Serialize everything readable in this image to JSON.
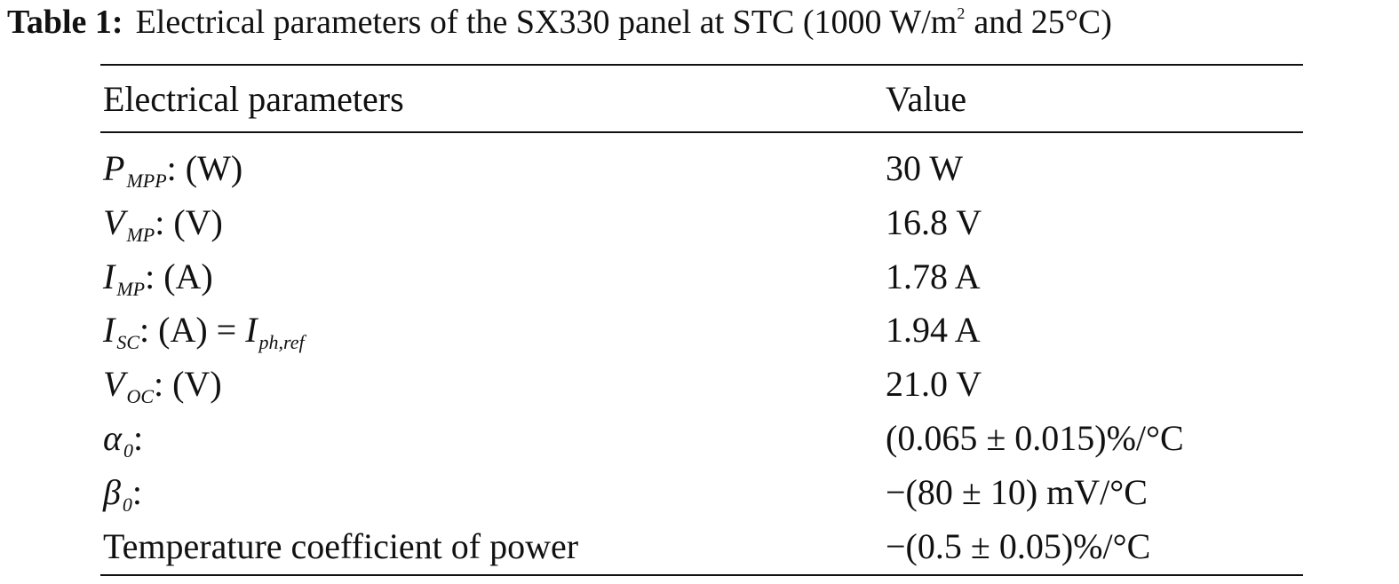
{
  "caption": {
    "label": "Table 1:",
    "text": "Electrical parameters of the SX330 panel at STC (1000 W/m",
    "sup": "2",
    "text_end": "and 25°C)"
  },
  "table": {
    "header": [
      "Electrical parameters",
      "Value"
    ],
    "rows": [
      {
        "label": [
          {
            "text": "P",
            "style": "italic"
          },
          {
            "text": "MPP",
            "style": "sub"
          },
          {
            "text": ": (W)",
            "style": "normal"
          }
        ],
        "value": "30 W"
      },
      {
        "label": [
          {
            "text": "V",
            "style": "italic"
          },
          {
            "text": "MP",
            "style": "sub"
          },
          {
            "text": ": (V)",
            "style": "normal"
          }
        ],
        "value": "16.8 V"
      },
      {
        "label": [
          {
            "text": "I",
            "style": "italic"
          },
          {
            "text": "MP",
            "style": "sub"
          },
          {
            "text": ": (A)",
            "style": "normal"
          }
        ],
        "value": "1.78 A"
      },
      {
        "label": [
          {
            "text": "I",
            "style": "italic"
          },
          {
            "text": "SC",
            "style": "sub"
          },
          {
            "text": ": (A) = ",
            "style": "normal"
          },
          {
            "text": "I",
            "style": "italic"
          },
          {
            "text": "ph,ref",
            "style": "sub"
          }
        ],
        "value": "1.94 A"
      },
      {
        "label": [
          {
            "text": "V",
            "style": "italic"
          },
          {
            "text": "OC",
            "style": "sub"
          },
          {
            "text": ": (V)",
            "style": "normal"
          }
        ],
        "value": "21.0 V"
      },
      {
        "label": [
          {
            "text": "α",
            "style": "italic"
          },
          {
            "text": "0",
            "style": "sub"
          },
          {
            "text": ":",
            "style": "normal"
          }
        ],
        "value": "(0.065 ± 0.015)%/°C"
      },
      {
        "label": [
          {
            "text": "β",
            "style": "italic"
          },
          {
            "text": "0",
            "style": "sub"
          },
          {
            "text": ":",
            "style": "normal"
          }
        ],
        "value": "−(80 ± 10) mV/°C"
      },
      {
        "label": [
          {
            "text": "Temperature coefficient of power",
            "style": "normal"
          }
        ],
        "value": "−(0.5 ± 0.05)%/°C"
      }
    ]
  }
}
